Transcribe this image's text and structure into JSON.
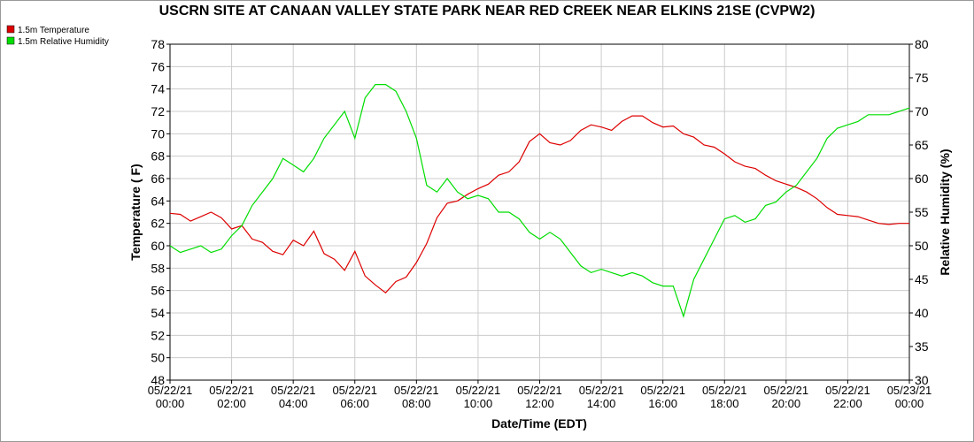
{
  "chart_data": {
    "type": "line",
    "title": "USCRN SITE AT CANAAN VALLEY STATE PARK NEAR RED CREEK NEAR ELKINS 21SE (CVPW2)",
    "x_label": "Date/Time (EDT)",
    "y_label": "Temperature ( F)",
    "y2_label": "Relative Humidity (%)",
    "x": [
      "05/22/21 00:00",
      "05/22/21 00:20",
      "05/22/21 00:40",
      "05/22/21 01:00",
      "05/22/21 01:20",
      "05/22/21 01:40",
      "05/22/21 02:00",
      "05/22/21 02:20",
      "05/22/21 02:40",
      "05/22/21 03:00",
      "05/22/21 03:20",
      "05/22/21 03:40",
      "05/22/21 04:00",
      "05/22/21 04:20",
      "05/22/21 04:40",
      "05/22/21 05:00",
      "05/22/21 05:20",
      "05/22/21 05:40",
      "05/22/21 06:00",
      "05/22/21 06:20",
      "05/22/21 06:40",
      "05/22/21 07:00",
      "05/22/21 07:20",
      "05/22/21 07:40",
      "05/22/21 08:00",
      "05/22/21 08:20",
      "05/22/21 08:40",
      "05/22/21 09:00",
      "05/22/21 09:20",
      "05/22/21 09:40",
      "05/22/21 10:00",
      "05/22/21 10:20",
      "05/22/21 10:40",
      "05/22/21 11:00",
      "05/22/21 11:20",
      "05/22/21 11:40",
      "05/22/21 12:00",
      "05/22/21 12:20",
      "05/22/21 12:40",
      "05/22/21 13:00",
      "05/22/21 13:20",
      "05/22/21 13:40",
      "05/22/21 14:00",
      "05/22/21 14:20",
      "05/22/21 14:40",
      "05/22/21 15:00",
      "05/22/21 15:20",
      "05/22/21 15:40",
      "05/22/21 16:00",
      "05/22/21 16:20",
      "05/22/21 16:40",
      "05/22/21 17:00",
      "05/22/21 17:20",
      "05/22/21 17:40",
      "05/22/21 18:00",
      "05/22/21 18:20",
      "05/22/21 18:40",
      "05/22/21 19:00",
      "05/22/21 19:20",
      "05/22/21 19:40",
      "05/22/21 20:00",
      "05/22/21 20:20",
      "05/22/21 20:40",
      "05/22/21 21:00",
      "05/22/21 21:20",
      "05/22/21 21:40",
      "05/22/21 22:00",
      "05/22/21 22:20",
      "05/22/21 22:40",
      "05/22/21 23:00",
      "05/22/21 23:20",
      "05/22/21 23:40",
      "05/23/21 00:00"
    ],
    "xlim": [
      "05/22/21 00:00",
      "05/23/21 00:00"
    ],
    "xticks": [
      "05/22/21 00:00",
      "05/22/21 02:00",
      "05/22/21 04:00",
      "05/22/21 06:00",
      "05/22/21 08:00",
      "05/22/21 10:00",
      "05/22/21 12:00",
      "05/22/21 14:00",
      "05/22/21 16:00",
      "05/22/21 18:00",
      "05/22/21 20:00",
      "05/22/21 22:00",
      "05/23/21 00:00"
    ],
    "ylim": [
      48,
      78
    ],
    "yticks": [
      48,
      50,
      52,
      54,
      56,
      58,
      60,
      62,
      64,
      66,
      68,
      70,
      72,
      74,
      76,
      78
    ],
    "y2lim": [
      30,
      80
    ],
    "y2ticks": [
      30,
      35,
      40,
      45,
      50,
      55,
      60,
      65,
      70,
      75,
      80
    ],
    "grid": true,
    "legend": "top-left",
    "series": [
      {
        "name": "1.5m Temperature",
        "color": "#dd0000",
        "values": [
          62.9,
          62.8,
          62.2,
          62.6,
          63.0,
          62.5,
          61.5,
          61.8,
          60.6,
          60.3,
          59.5,
          59.2,
          60.5,
          60.0,
          61.3,
          59.3,
          58.8,
          57.8,
          59.5,
          57.3,
          56.5,
          55.8,
          56.8,
          57.2,
          58.5,
          60.2,
          62.5,
          63.8,
          64.0,
          64.6,
          65.1,
          65.5,
          66.3,
          66.6,
          67.5,
          69.3,
          70.0,
          69.2,
          69.0,
          69.4,
          70.3,
          70.8,
          70.6,
          70.3,
          71.1,
          71.6,
          71.6,
          71.0,
          70.6,
          70.7,
          70.0,
          69.7,
          69.0,
          68.8,
          68.2,
          67.5,
          67.1,
          66.9,
          66.3,
          65.8,
          65.5,
          65.2,
          64.8,
          64.2,
          63.4,
          62.8,
          62.7,
          62.6,
          62.3,
          62.0,
          61.9,
          62.0,
          62.0
        ]
      },
      {
        "name": "1.5m Relative Humidity",
        "color": "#00dd00",
        "axis": "y2",
        "values": [
          50,
          49,
          49.5,
          50,
          49,
          49.5,
          51.5,
          53,
          56,
          58,
          60,
          63,
          62,
          61,
          63,
          66,
          68,
          70,
          66,
          72,
          74,
          74,
          73,
          70,
          66,
          59,
          58,
          60,
          58,
          57,
          57.5,
          57,
          55,
          55,
          54,
          52,
          51,
          52,
          51,
          49,
          47,
          46,
          46.5,
          46,
          45.5,
          46,
          45.5,
          44.5,
          44,
          44,
          39.5,
          45,
          48,
          51,
          54,
          54.5,
          53.5,
          54,
          56,
          56.5,
          58,
          59,
          61,
          63,
          66,
          67.5,
          68,
          68.5,
          69.5,
          69.5,
          69.5,
          70,
          70.5
        ]
      }
    ]
  }
}
